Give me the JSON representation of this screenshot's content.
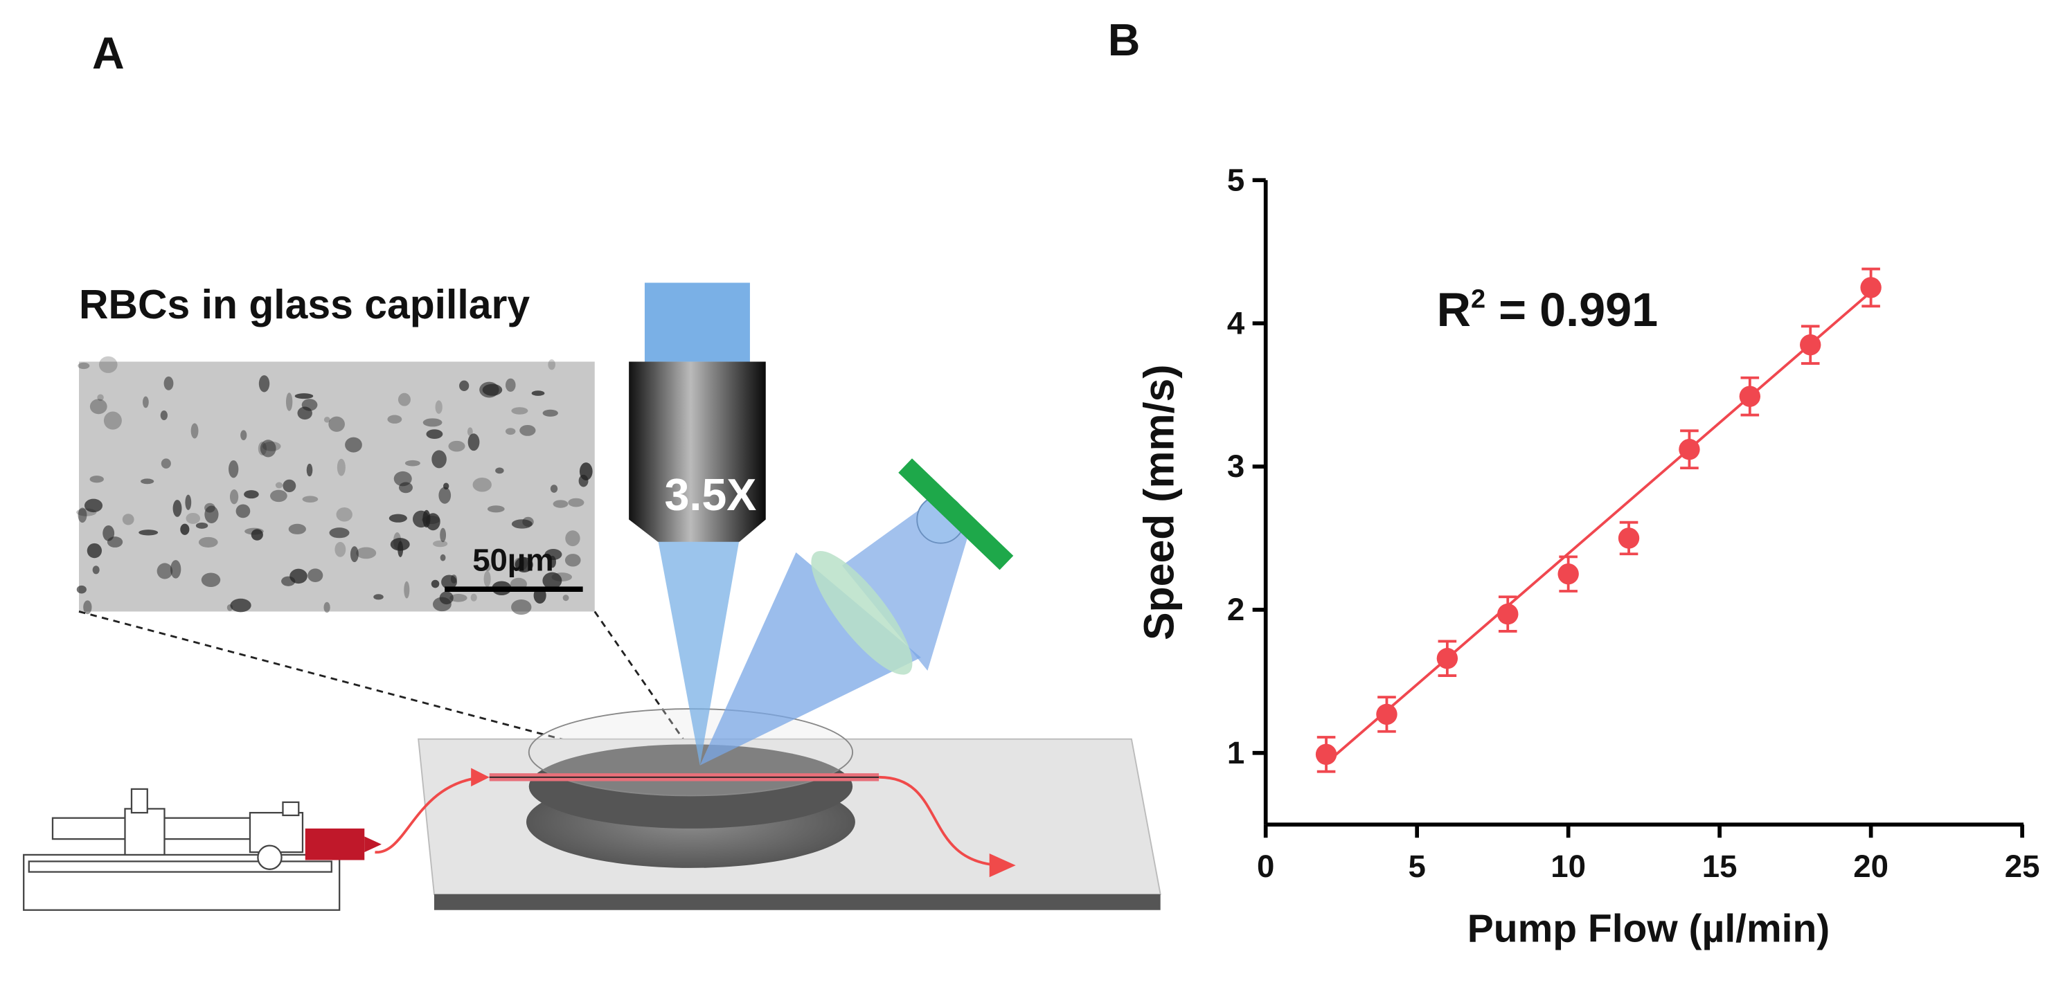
{
  "panel_labels": [
    "A",
    "B"
  ],
  "diagram": {
    "caption": "RBCs in glass capillary",
    "objective_label": "3.5X",
    "scale_bar": "50µm"
  },
  "chart_data": {
    "type": "scatter",
    "xlabel": "Pump Flow (µl/min)",
    "ylabel": "Speed (mm/s)",
    "annotation": {
      "base": "R",
      "sup": "2",
      "rest": " = 0.991"
    },
    "x": [
      2,
      4,
      6,
      8,
      10,
      12,
      14,
      16,
      18,
      20
    ],
    "values": [
      0.99,
      1.27,
      1.66,
      1.97,
      2.25,
      2.5,
      3.12,
      3.49,
      3.85,
      4.25
    ],
    "errors": [
      0.12,
      0.12,
      0.12,
      0.12,
      0.12,
      0.11,
      0.13,
      0.13,
      0.13,
      0.13
    ],
    "fit": {
      "x": [
        2,
        20
      ],
      "y": [
        0.93,
        4.22
      ]
    },
    "color": "#f0474f",
    "xlim": [
      0,
      25
    ],
    "xticks": [
      0,
      5,
      10,
      15,
      20,
      25
    ],
    "ylim": [
      0.5,
      5
    ],
    "yticks": [
      1,
      2,
      3,
      4,
      5
    ]
  }
}
